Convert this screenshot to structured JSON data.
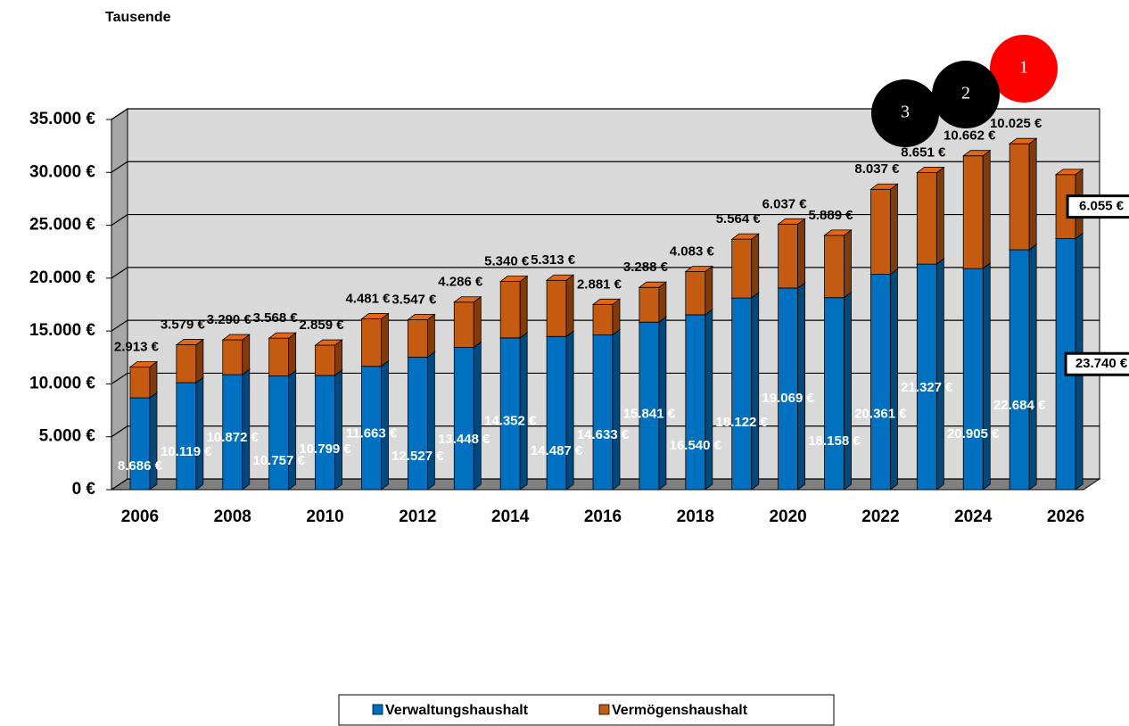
{
  "chart_data": {
    "type": "bar",
    "stacked": true,
    "three_d": true,
    "y_axis_label": "Tausende",
    "annotations": [
      "1",
      "2",
      "3"
    ],
    "categories": [
      "2006",
      null,
      "2008",
      null,
      "2010",
      null,
      "2012",
      null,
      "2014",
      null,
      "2016",
      null,
      "2018",
      null,
      "2020",
      null,
      "2022",
      null,
      "2024",
      null,
      "2026"
    ],
    "series": [
      {
        "name": "Verwaltungshaushalt",
        "color": "#0070c0",
        "values": [
          8686,
          10119,
          10872,
          10757,
          10799,
          11663,
          12527,
          13448,
          14352,
          14487,
          14633,
          15841,
          16540,
          18122,
          19069,
          18158,
          20361,
          21327,
          20905,
          22684,
          23740
        ],
        "value_labels": [
          "8.686 €",
          "10.119 €",
          "10.872 €",
          "10.757 €",
          "10.799 €",
          "11.663 €",
          "12.527 €",
          "13.448 €",
          "14.352 €",
          "14.487 €",
          "14.633 €",
          "15.841 €",
          "16.540 €",
          "18.122 €",
          "19.069 €",
          "18.158 €",
          "20.361 €",
          "21.327 €",
          "20.905 €",
          "22.684 €",
          "23.740 €"
        ]
      },
      {
        "name": "Vermögenshaushalt",
        "color": "#c55a11",
        "values": [
          2913,
          3579,
          3290,
          3568,
          2859,
          4481,
          3547,
          4286,
          5340,
          5313,
          2881,
          3288,
          4083,
          5564,
          6037,
          5889,
          8037,
          8651,
          10662,
          10025,
          6055
        ],
        "value_labels": [
          "2.913 €",
          "3.579 €",
          "3.290 €",
          "3.568 €",
          "2.859 €",
          "4.481 €",
          "3.547 €",
          "4.286 €",
          "5.340 €",
          "5.313 €",
          "2.881 €",
          "3.288 €",
          "4.083 €",
          "5.564 €",
          "6.037 €",
          "5.889 €",
          "8.037 €",
          "8.651 €",
          "10.662 €",
          "10.025 €",
          "6.055 €"
        ]
      }
    ],
    "ylim": [
      0,
      35000
    ],
    "yticks": [
      {
        "value": 0,
        "label": "0 €"
      },
      {
        "value": 5000,
        "label": "5.000 €"
      },
      {
        "value": 10000,
        "label": "10.000 €"
      },
      {
        "value": 15000,
        "label": "15.000 €"
      },
      {
        "value": 20000,
        "label": "20.000 €"
      },
      {
        "value": 25000,
        "label": "25.000 €"
      },
      {
        "value": 30000,
        "label": "30.000 €"
      },
      {
        "value": 35000,
        "label": "35.000 €"
      }
    ],
    "grid": true,
    "legend": "bottom"
  }
}
